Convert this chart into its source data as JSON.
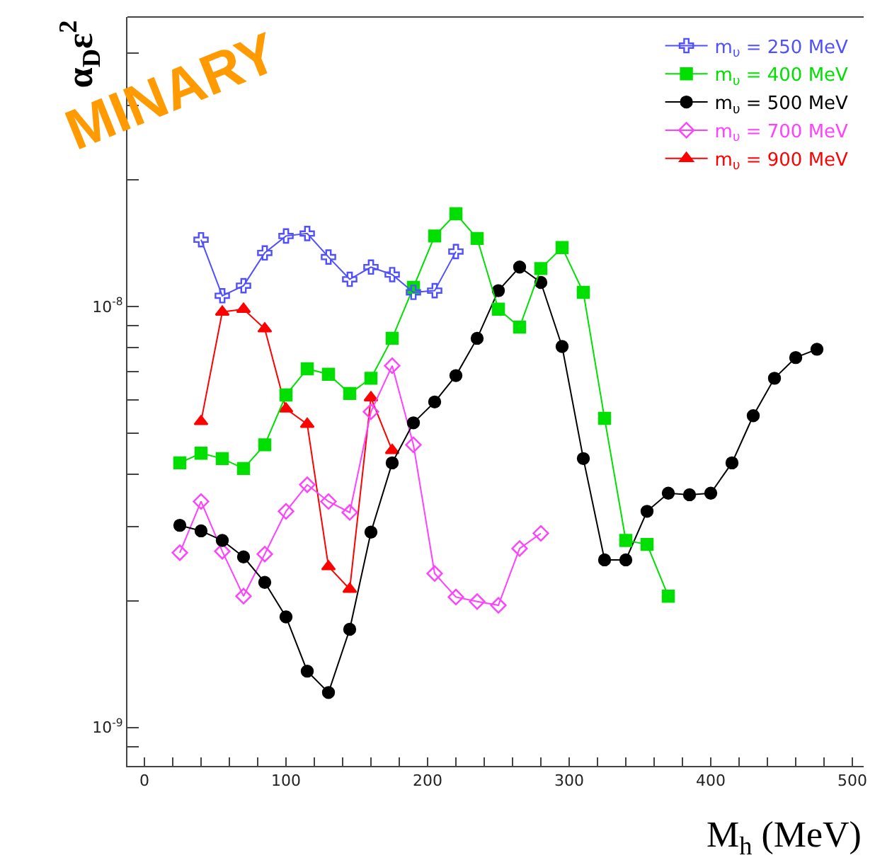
{
  "chart_data": {
    "type": "line",
    "xlabel": "M$_{h}$ (MeV)",
    "ylabel": "α$_{D}$ε$^{2}$",
    "log": "y",
    "legend": "top right",
    "line_style": "solid",
    "xlim": [
      -12,
      508
    ],
    "ylim": [
      8.1e-10,
      4.87e-08
    ],
    "xticks": [
      0,
      {
        "value": 20,
        "label": null
      },
      {
        "value": 40,
        "label": null
      },
      {
        "value": 60,
        "label": null
      },
      {
        "value": 80,
        "label": null
      },
      100,
      {
        "value": 120,
        "label": null
      },
      {
        "value": 140,
        "label": null
      },
      {
        "value": 160,
        "label": null
      },
      {
        "value": 180,
        "label": null
      },
      200,
      {
        "value": 220,
        "label": null
      },
      {
        "value": 240,
        "label": null
      },
      {
        "value": 260,
        "label": null
      },
      {
        "value": 280,
        "label": null
      },
      300,
      {
        "value": 320,
        "label": null
      },
      {
        "value": 340,
        "label": null
      },
      {
        "value": 360,
        "label": null
      },
      {
        "value": 380,
        "label": null
      },
      400,
      {
        "value": 420,
        "label": null
      },
      {
        "value": 440,
        "label": null
      },
      {
        "value": 460,
        "label": null
      },
      {
        "value": 480,
        "label": null
      },
      500
    ],
    "yticks": [
      {
        "value": 9e-10,
        "label": null
      },
      {
        "value": 1e-09,
        "label": "10$^{-9}$"
      },
      {
        "value": 2e-09,
        "label": null
      },
      {
        "value": 3e-09,
        "label": null
      },
      {
        "value": 4e-09,
        "label": null
      },
      {
        "value": 5e-09,
        "label": null
      },
      {
        "value": 6e-09,
        "label": null
      },
      {
        "value": 7e-09,
        "label": null
      },
      {
        "value": 8e-09,
        "label": null
      },
      {
        "value": 9e-09,
        "label": null
      },
      {
        "value": 1e-08,
        "label": "10$^{-8}$"
      },
      {
        "value": 2e-08,
        "label": null
      },
      {
        "value": 3e-08,
        "label": null
      },
      {
        "value": 4e-08,
        "label": null
      }
    ],
    "annotations": [
      "MINARY"
    ],
    "series": [
      {
        "name": "m$_{υ}$ = 250 MeV",
        "color": "#5050ff",
        "marker": "cross",
        "x": [
          40,
          55,
          70,
          85,
          100,
          115,
          130,
          145,
          160,
          175,
          190,
          205,
          220
        ],
        "values": [
          1.44e-08,
          1.06e-08,
          1.12e-08,
          1.34e-08,
          1.47e-08,
          1.49e-08,
          1.31e-08,
          1.16e-08,
          1.24e-08,
          1.19e-08,
          1.08e-08,
          1.09e-08,
          1.35e-08
        ]
      },
      {
        "name": "m$_{υ}$ = 400 MeV",
        "color": "#00e000",
        "marker": "square",
        "x": [
          25,
          40,
          55,
          70,
          85,
          100,
          115,
          130,
          145,
          160,
          175,
          190,
          205,
          220,
          235,
          250,
          265,
          280,
          295,
          310,
          325,
          340,
          355,
          370
        ],
        "values": [
          4.25e-09,
          4.48e-09,
          4.35e-09,
          4.12e-09,
          4.69e-09,
          6.16e-09,
          7.11e-09,
          6.9e-09,
          6.21e-09,
          6.75e-09,
          8.4e-09,
          1.11e-08,
          1.47e-08,
          1.66e-08,
          1.45e-08,
          9.85e-09,
          8.93e-09,
          1.23e-08,
          1.38e-08,
          1.08e-08,
          5.42e-09,
          2.78e-09,
          2.72e-09,
          2.05e-09
        ]
      },
      {
        "name": "m$_{υ}$ = 500 MeV",
        "color": "#000000",
        "marker": "circle",
        "x": [
          25,
          40,
          55,
          70,
          85,
          100,
          115,
          130,
          145,
          160,
          175,
          190,
          205,
          220,
          235,
          250,
          265,
          280,
          295,
          310,
          325,
          340,
          355,
          370,
          385,
          400,
          415,
          430,
          445,
          460,
          475
        ],
        "values": [
          3.02e-09,
          2.93e-09,
          2.78e-09,
          2.54e-09,
          2.21e-09,
          1.83e-09,
          1.36e-09,
          1.21e-09,
          1.71e-09,
          2.91e-09,
          4.25e-09,
          5.29e-09,
          5.93e-09,
          6.85e-09,
          8.4e-09,
          1.09e-08,
          1.24e-08,
          1.14e-08,
          8.03e-09,
          4.35e-09,
          2.5e-09,
          2.5e-09,
          3.26e-09,
          3.6e-09,
          3.57e-09,
          3.6e-09,
          4.25e-09,
          5.5e-09,
          6.75e-09,
          7.56e-09,
          7.91e-09
        ]
      },
      {
        "name": "m$_{υ}$ = 700 MeV",
        "color": "#ff40ff",
        "marker": "diamond",
        "x": [
          25,
          40,
          55,
          70,
          85,
          100,
          115,
          130,
          145,
          160,
          175,
          190,
          205,
          220,
          235,
          250,
          265,
          280
        ],
        "values": [
          2.6e-09,
          3.44e-09,
          2.62e-09,
          2.05e-09,
          2.58e-09,
          3.26e-09,
          3.77e-09,
          3.44e-09,
          3.24e-09,
          5.62e-09,
          7.23e-09,
          4.69e-09,
          2.32e-09,
          2.04e-09,
          1.99e-09,
          1.95e-09,
          2.66e-09,
          2.89e-09
        ]
      },
      {
        "name": "m$_{υ}$ = 900 MeV",
        "color": "#ff0000",
        "marker": "triangle",
        "x": [
          40,
          55,
          70,
          85,
          100,
          115,
          130,
          145,
          160,
          175
        ],
        "values": [
          5.33e-09,
          9.7e-09,
          9.85e-09,
          8.85e-09,
          5.71e-09,
          5.25e-09,
          2.41e-09,
          2.13e-09,
          6.07e-09,
          4.55e-09
        ]
      }
    ]
  }
}
